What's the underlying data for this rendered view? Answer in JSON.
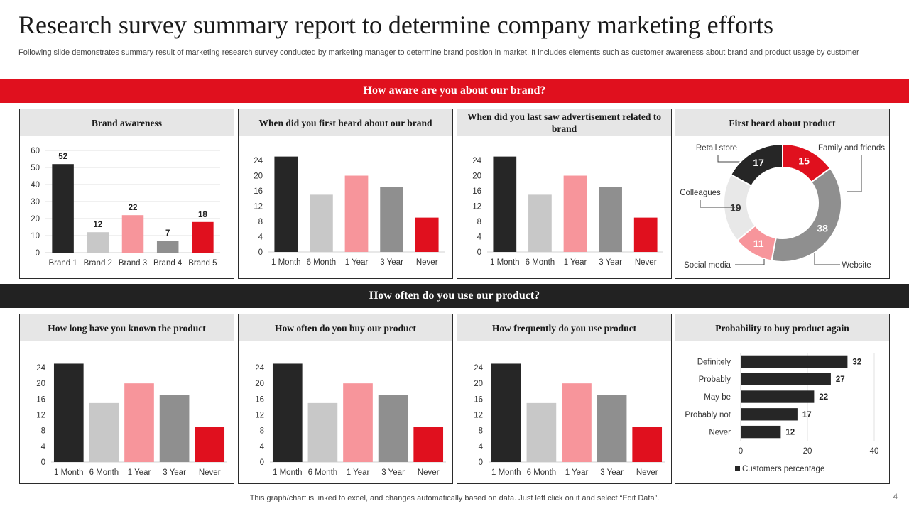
{
  "title": "Research survey summary report to determine company marketing efforts",
  "subtitle": "Following slide demonstrates summary result of marketing research survey conducted by marketing manager to determine brand position in market. It includes elements such as customer awareness about brand and product usage by customer",
  "section1": "How aware are you about our brand?",
  "section2": "How often do you use our product?",
  "footer": "This graph/chart is linked to excel, and changes automatically based on data. Just left click on it and select “Edit Data”.",
  "page_number": "4",
  "colors": {
    "red": "#e0101e",
    "black": "#262626",
    "lightgray": "#c8c8c8",
    "pink": "#f7959b",
    "gray": "#8f8f8f",
    "verylightgray": "#e8e8e8"
  },
  "panels": [
    {
      "title": "Brand awareness"
    },
    {
      "title": "When did you first heard about our brand"
    },
    {
      "title": "When did you last saw advertisement related to brand"
    },
    {
      "title": "First heard about product"
    },
    {
      "title": "How long have you known the product"
    },
    {
      "title": "How often do you buy our product"
    },
    {
      "title": "How frequently do you use product"
    },
    {
      "title": "Probability to buy product again"
    }
  ],
  "chart_data": [
    {
      "type": "bar",
      "title": "Brand awareness",
      "categories": [
        "Brand 1",
        "Brand 2",
        "Brand 3",
        "Brand 4",
        "Brand 5"
      ],
      "values": [
        52,
        12,
        22,
        7,
        18
      ],
      "data_labels": true,
      "ylim": [
        0,
        60
      ],
      "yticks": [
        0,
        10,
        20,
        30,
        40,
        50,
        60
      ],
      "grid": true,
      "bar_colors": [
        "#262626",
        "#c8c8c8",
        "#f7959b",
        "#8f8f8f",
        "#e0101e"
      ]
    },
    {
      "type": "bar",
      "title": "When did you first heard about our brand",
      "categories": [
        "1 Month",
        "6 Month",
        "1 Year",
        "3 Year",
        "Never"
      ],
      "values": [
        25,
        15,
        20,
        17,
        9
      ],
      "data_labels": false,
      "ylim": [
        0,
        24
      ],
      "yticks": [
        0,
        4,
        8,
        12,
        16,
        20,
        24
      ],
      "grid": false,
      "bar_colors": [
        "#262626",
        "#c8c8c8",
        "#f7959b",
        "#8f8f8f",
        "#e0101e"
      ]
    },
    {
      "type": "bar",
      "title": "When did you last saw advertisement related to brand",
      "categories": [
        "1 Month",
        "6 Month",
        "1 Year",
        "3 Year",
        "Never"
      ],
      "values": [
        25,
        15,
        20,
        17,
        9
      ],
      "data_labels": false,
      "ylim": [
        0,
        24
      ],
      "yticks": [
        0,
        4,
        8,
        12,
        16,
        20,
        24
      ],
      "grid": false,
      "bar_colors": [
        "#262626",
        "#c8c8c8",
        "#f7959b",
        "#8f8f8f",
        "#e0101e"
      ]
    },
    {
      "type": "pie",
      "donut": true,
      "title": "First heard about product",
      "categories": [
        "Retail store",
        "Family and friends",
        "Website",
        "Social media",
        "Colleagues"
      ],
      "values": [
        15,
        38,
        11,
        19,
        17
      ],
      "slice_colors": [
        "#e0101e",
        "#8f8f8f",
        "#f7959b",
        "#e8e8e8",
        "#262626"
      ]
    },
    {
      "type": "bar",
      "title": "How long have you known the product",
      "categories": [
        "1 Month",
        "6 Month",
        "1 Year",
        "3 Year",
        "Never"
      ],
      "values": [
        25,
        15,
        20,
        17,
        9
      ],
      "data_labels": false,
      "ylim": [
        0,
        24
      ],
      "yticks": [
        0,
        4,
        8,
        12,
        16,
        20,
        24
      ],
      "grid": false,
      "bar_colors": [
        "#262626",
        "#c8c8c8",
        "#f7959b",
        "#8f8f8f",
        "#e0101e"
      ]
    },
    {
      "type": "bar",
      "title": "How often do you buy our product",
      "categories": [
        "1 Month",
        "6 Month",
        "1 Year",
        "3 Year",
        "Never"
      ],
      "values": [
        25,
        15,
        20,
        17,
        9
      ],
      "data_labels": false,
      "ylim": [
        0,
        24
      ],
      "yticks": [
        0,
        4,
        8,
        12,
        16,
        20,
        24
      ],
      "grid": false,
      "bar_colors": [
        "#262626",
        "#c8c8c8",
        "#f7959b",
        "#8f8f8f",
        "#e0101e"
      ]
    },
    {
      "type": "bar",
      "title": "How frequently do you use product",
      "categories": [
        "1 Month",
        "6 Month",
        "1 Year",
        "3 Year",
        "Never"
      ],
      "values": [
        25,
        15,
        20,
        17,
        9
      ],
      "data_labels": false,
      "ylim": [
        0,
        24
      ],
      "yticks": [
        0,
        4,
        8,
        12,
        16,
        20,
        24
      ],
      "grid": false,
      "bar_colors": [
        "#262626",
        "#c8c8c8",
        "#f7959b",
        "#8f8f8f",
        "#e0101e"
      ]
    },
    {
      "type": "bar",
      "orientation": "horizontal",
      "title": "Probability to buy product again",
      "categories": [
        "Definitely",
        "Probably",
        "May be",
        "Probably not",
        "Never"
      ],
      "series": [
        {
          "name": "Customers percentage",
          "values": [
            32,
            27,
            22,
            17,
            12
          ]
        }
      ],
      "data_labels": true,
      "xlim": [
        0,
        40
      ],
      "xticks": [
        0,
        20,
        40
      ],
      "grid": true,
      "legend": "bottom",
      "bar_color": "#262626"
    }
  ]
}
